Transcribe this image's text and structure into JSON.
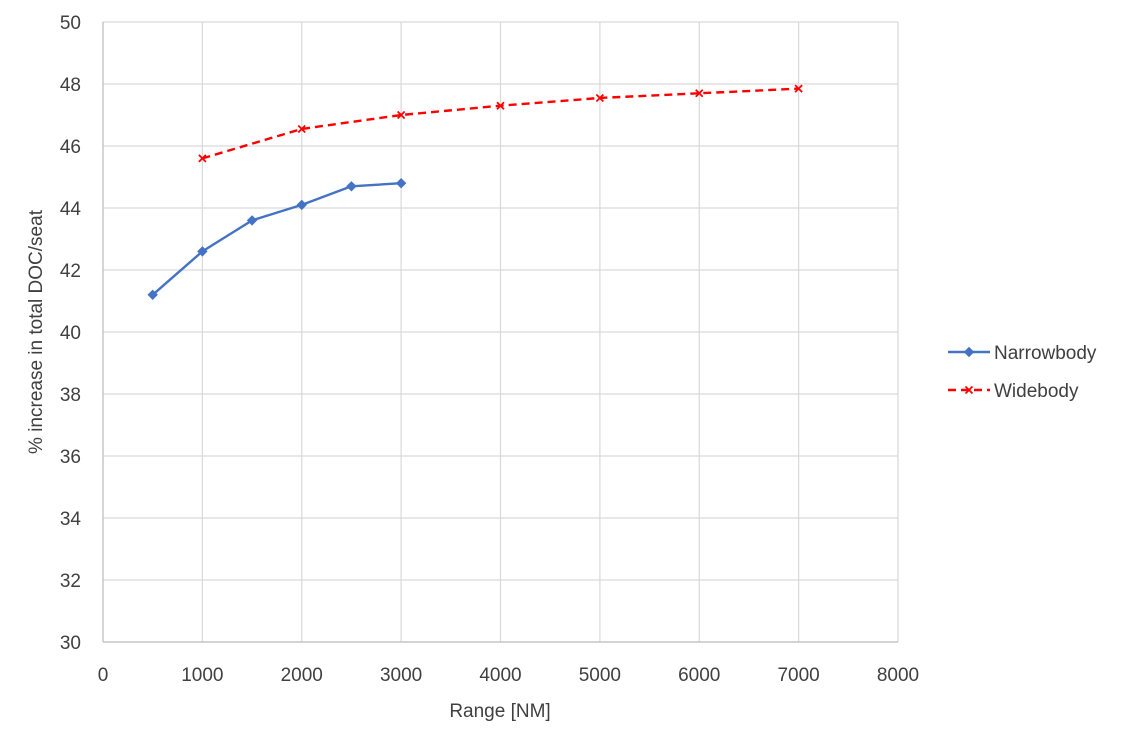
{
  "chart_data": {
    "type": "line",
    "xlabel": "Range [NM]",
    "ylabel": "% increase in total DOC/seat",
    "xlim": [
      0,
      8000
    ],
    "ylim": [
      30,
      50
    ],
    "x_ticks": [
      "0",
      "1000",
      "2000",
      "3000",
      "4000",
      "5000",
      "6000",
      "7000",
      "8000"
    ],
    "y_ticks": [
      "30",
      "32",
      "34",
      "36",
      "38",
      "40",
      "42",
      "44",
      "46",
      "48",
      "50"
    ],
    "grid": true,
    "legend_position": "right",
    "series": [
      {
        "name": "Narrowbody",
        "color": "#4472C4",
        "line_style": "solid",
        "marker": "diamond",
        "x": [
          500,
          1000,
          1500,
          2000,
          2500,
          3000
        ],
        "y": [
          41.2,
          42.6,
          43.6,
          44.1,
          44.7,
          44.8
        ]
      },
      {
        "name": "Widebody",
        "color": "#FF0000",
        "line_style": "dashed",
        "marker": "x",
        "x": [
          1000,
          2000,
          3000,
          4000,
          5000,
          6000,
          7000
        ],
        "y": [
          45.6,
          46.55,
          47.0,
          47.3,
          47.55,
          47.7,
          47.85
        ]
      }
    ]
  }
}
